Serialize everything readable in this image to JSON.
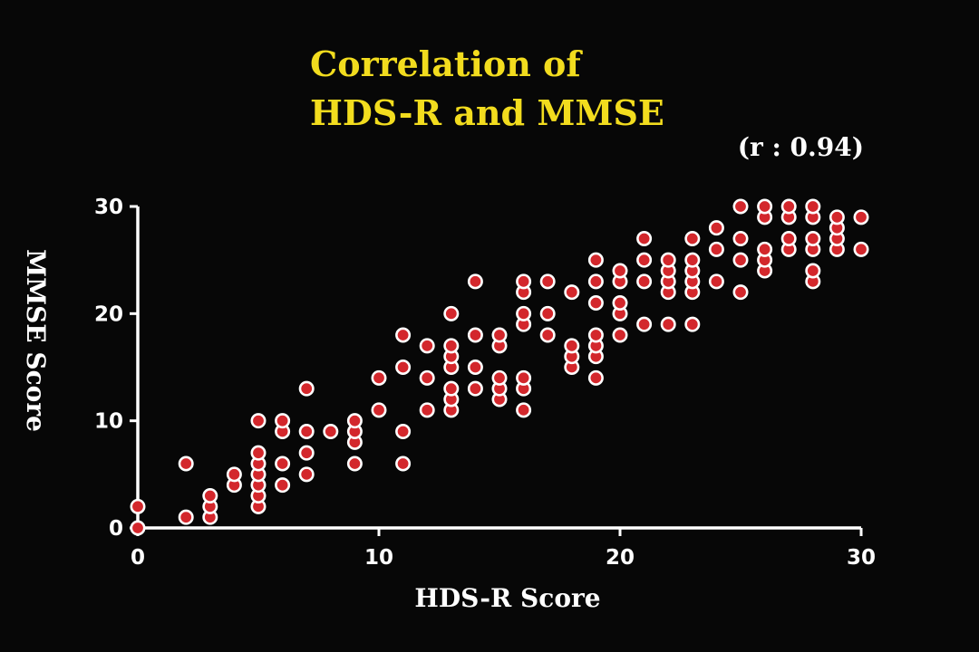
{
  "slide": {
    "title_line1": "Correlation of",
    "title_line2": "HDS-R and MMSE",
    "correlation_label": "(r : 0.94)"
  },
  "colors": {
    "background": "#070707",
    "title": "#f2dc1e",
    "text": "#ffffff",
    "point_fill": "#d3272c",
    "point_stroke": "#ffffff"
  },
  "chart_data": {
    "type": "scatter",
    "title": "Correlation of HDS-R and MMSE",
    "annotation": "(r : 0.94)",
    "xlabel": "HDS-R Score",
    "ylabel": "MMSE Score",
    "xlim": [
      0,
      30
    ],
    "ylim": [
      0,
      30
    ],
    "xticks": [
      "0",
      "10",
      "20",
      "30"
    ],
    "yticks": [
      "0",
      "10",
      "20",
      "30"
    ],
    "grid": false,
    "points": [
      [
        0,
        0
      ],
      [
        0,
        2
      ],
      [
        2,
        1
      ],
      [
        2,
        6
      ],
      [
        3,
        1
      ],
      [
        3,
        2
      ],
      [
        3,
        3
      ],
      [
        4,
        4
      ],
      [
        4,
        5
      ],
      [
        5,
        2
      ],
      [
        5,
        3
      ],
      [
        5,
        4
      ],
      [
        5,
        5
      ],
      [
        5,
        6
      ],
      [
        5,
        7
      ],
      [
        5,
        10
      ],
      [
        6,
        4
      ],
      [
        6,
        6
      ],
      [
        6,
        9
      ],
      [
        6,
        10
      ],
      [
        7,
        5
      ],
      [
        7,
        7
      ],
      [
        7,
        9
      ],
      [
        7,
        13
      ],
      [
        8,
        9
      ],
      [
        9,
        6
      ],
      [
        9,
        8
      ],
      [
        9,
        9
      ],
      [
        9,
        10
      ],
      [
        10,
        11
      ],
      [
        10,
        14
      ],
      [
        11,
        6
      ],
      [
        11,
        9
      ],
      [
        11,
        15
      ],
      [
        11,
        18
      ],
      [
        12,
        11
      ],
      [
        12,
        14
      ],
      [
        12,
        17
      ],
      [
        13,
        11
      ],
      [
        13,
        12
      ],
      [
        13,
        13
      ],
      [
        13,
        15
      ],
      [
        13,
        16
      ],
      [
        13,
        17
      ],
      [
        13,
        20
      ],
      [
        14,
        13
      ],
      [
        14,
        15
      ],
      [
        14,
        18
      ],
      [
        14,
        23
      ],
      [
        15,
        12
      ],
      [
        15,
        13
      ],
      [
        15,
        14
      ],
      [
        15,
        17
      ],
      [
        15,
        18
      ],
      [
        16,
        11
      ],
      [
        16,
        13
      ],
      [
        16,
        14
      ],
      [
        16,
        19
      ],
      [
        16,
        20
      ],
      [
        16,
        22
      ],
      [
        16,
        23
      ],
      [
        17,
        18
      ],
      [
        17,
        20
      ],
      [
        17,
        23
      ],
      [
        18,
        15
      ],
      [
        18,
        16
      ],
      [
        18,
        17
      ],
      [
        18,
        22
      ],
      [
        19,
        14
      ],
      [
        19,
        16
      ],
      [
        19,
        17
      ],
      [
        19,
        18
      ],
      [
        19,
        21
      ],
      [
        19,
        23
      ],
      [
        19,
        25
      ],
      [
        20,
        18
      ],
      [
        20,
        20
      ],
      [
        20,
        21
      ],
      [
        20,
        23
      ],
      [
        20,
        24
      ],
      [
        21,
        19
      ],
      [
        21,
        23
      ],
      [
        21,
        25
      ],
      [
        21,
        27
      ],
      [
        22,
        19
      ],
      [
        22,
        22
      ],
      [
        22,
        23
      ],
      [
        22,
        24
      ],
      [
        22,
        25
      ],
      [
        23,
        19
      ],
      [
        23,
        22
      ],
      [
        23,
        23
      ],
      [
        23,
        24
      ],
      [
        23,
        25
      ],
      [
        23,
        27
      ],
      [
        24,
        23
      ],
      [
        24,
        26
      ],
      [
        24,
        28
      ],
      [
        25,
        22
      ],
      [
        25,
        25
      ],
      [
        25,
        27
      ],
      [
        25,
        30
      ],
      [
        26,
        24
      ],
      [
        26,
        25
      ],
      [
        26,
        26
      ],
      [
        26,
        29
      ],
      [
        26,
        30
      ],
      [
        27,
        26
      ],
      [
        27,
        27
      ],
      [
        27,
        29
      ],
      [
        27,
        30
      ],
      [
        28,
        23
      ],
      [
        28,
        24
      ],
      [
        28,
        26
      ],
      [
        28,
        27
      ],
      [
        28,
        29
      ],
      [
        28,
        30
      ],
      [
        29,
        26
      ],
      [
        29,
        27
      ],
      [
        29,
        28
      ],
      [
        29,
        29
      ],
      [
        30,
        26
      ],
      [
        30,
        29
      ]
    ]
  }
}
